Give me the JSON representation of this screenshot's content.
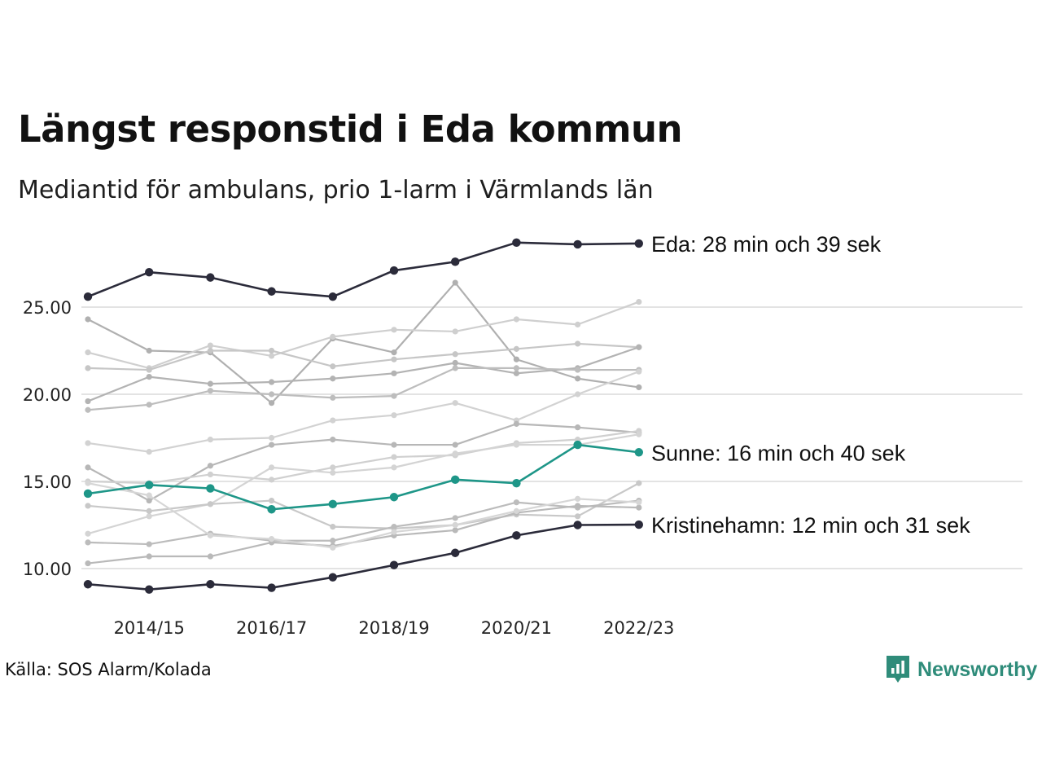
{
  "title": "Längst responstid i Eda kommun",
  "subtitle": "Mediantid för ambulans, prio 1-larm i Värmlands län",
  "source": "Källa: SOS Alarm/Kolada",
  "brand": {
    "name": "Newsworthy",
    "icon": "bar-chart-logo-icon",
    "color": "#2f8c7a"
  },
  "chart_data": {
    "type": "line",
    "x": [
      "2013/14",
      "2014/15",
      "2015/16",
      "2016/17",
      "2017/18",
      "2018/19",
      "2019/20",
      "2020/21",
      "2021/22",
      "2022/23"
    ],
    "x_tick_labels": [
      "2014/15",
      "2016/17",
      "2018/19",
      "2020/21",
      "2022/23"
    ],
    "y_ticks": [
      "10.00",
      "15.00",
      "20.00",
      "25.00"
    ],
    "ylim": [
      8.5,
      29
    ],
    "grid": "horizontal",
    "highlighted": [
      {
        "name": "Eda",
        "label": "Eda: 28 min och 39 sek",
        "color": "#2b2b3a",
        "values": [
          25.6,
          27.0,
          26.7,
          25.9,
          25.6,
          27.1,
          27.6,
          28.7,
          28.6,
          28.65
        ]
      },
      {
        "name": "Sunne",
        "label": "Sunne: 16 min och 40 sek",
        "color": "#1e9688",
        "values": [
          14.3,
          14.8,
          14.6,
          13.4,
          13.7,
          14.1,
          15.1,
          14.9,
          17.1,
          16.67
        ]
      },
      {
        "name": "Kristinehamn",
        "label": "Kristinehamn: 12 min och 31 sek",
        "color": "#2b2b3a",
        "values": [
          9.1,
          8.8,
          9.1,
          8.9,
          9.5,
          10.2,
          10.9,
          11.9,
          12.5,
          12.52
        ]
      }
    ],
    "background_series": [
      {
        "color": "#b0b0b0",
        "values": [
          24.3,
          22.5,
          22.4,
          19.5,
          23.2,
          22.4,
          26.4,
          22.0,
          20.9,
          20.4
        ]
      },
      {
        "color": "#cfcfcf",
        "values": [
          22.4,
          21.5,
          22.8,
          22.2,
          23.3,
          23.7,
          23.6,
          24.3,
          24.0,
          25.3
        ]
      },
      {
        "color": "#c6c6c6",
        "values": [
          21.5,
          21.4,
          22.5,
          22.5,
          21.6,
          22.0,
          22.3,
          22.6,
          22.9,
          22.7
        ]
      },
      {
        "color": "#b3b3b3",
        "values": [
          19.6,
          21.0,
          20.6,
          20.7,
          20.9,
          21.2,
          21.8,
          21.2,
          21.5,
          22.7
        ]
      },
      {
        "color": "#bdbdbd",
        "values": [
          19.1,
          19.4,
          20.2,
          20.0,
          19.8,
          19.9,
          21.5,
          21.5,
          21.4,
          21.4
        ]
      },
      {
        "color": "#d2d2d2",
        "values": [
          17.2,
          16.7,
          17.4,
          17.5,
          18.5,
          18.8,
          19.5,
          18.5,
          20.0,
          21.3
        ]
      },
      {
        "color": "#b7b7b7",
        "values": [
          15.8,
          13.9,
          15.9,
          17.1,
          17.4,
          17.1,
          17.1,
          18.3,
          18.1,
          17.8
        ]
      },
      {
        "color": "#d0d0d0",
        "values": [
          15.0,
          14.9,
          15.4,
          15.1,
          15.8,
          16.4,
          16.5,
          17.2,
          17.4,
          17.9
        ]
      },
      {
        "color": "#d4d4d4",
        "values": [
          12.0,
          13.0,
          13.7,
          15.8,
          15.5,
          15.8,
          16.6,
          17.1,
          17.1,
          17.7
        ]
      },
      {
        "color": "#c8c8c8",
        "values": [
          13.6,
          13.3,
          13.7,
          13.9,
          12.4,
          12.3,
          12.5,
          13.1,
          13.0,
          14.9
        ]
      },
      {
        "color": "#bcbcbc",
        "values": [
          11.5,
          11.4,
          12.0,
          11.6,
          11.6,
          12.4,
          12.9,
          13.8,
          13.5,
          13.9
        ]
      },
      {
        "color": "#b9b9b9",
        "values": [
          10.3,
          10.7,
          10.7,
          11.5,
          11.3,
          11.9,
          12.2,
          13.2,
          13.6,
          13.5
        ]
      },
      {
        "color": "#d6d6d6",
        "values": [
          14.9,
          14.2,
          11.9,
          11.7,
          11.2,
          12.1,
          12.5,
          13.3,
          14.0,
          13.8
        ]
      }
    ]
  }
}
